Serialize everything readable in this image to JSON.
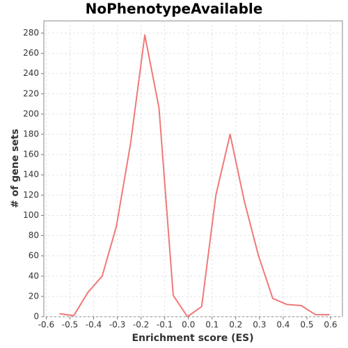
{
  "chart_data": {
    "type": "line",
    "title": "NoPhenotypeAvailable",
    "x_label": "Enrichment score (ES)",
    "y_label": "# of gene sets",
    "x": [
      -0.544,
      -0.484,
      -0.424,
      -0.364,
      -0.304,
      -0.244,
      -0.184,
      -0.124,
      -0.064,
      -0.004,
      0.056,
      0.116,
      0.176,
      0.236,
      0.296,
      0.356,
      0.416,
      0.476,
      0.536,
      0.596
    ],
    "values": [
      3,
      1,
      24,
      40,
      89,
      171,
      278,
      206,
      21,
      0,
      10,
      120,
      180,
      114,
      60,
      18,
      12,
      11,
      2,
      2
    ],
    "color": "#f07878",
    "xlim": [
      -0.61,
      0.65
    ],
    "ylim": [
      0,
      292
    ],
    "xticks": [
      -0.6,
      -0.5,
      -0.4,
      -0.3,
      -0.2,
      -0.1,
      {
        "value": 0,
        "label": "0.0"
      },
      0.1,
      0.2,
      0.3,
      0.4,
      0.5,
      0.6
    ],
    "yticks": [
      0,
      20,
      40,
      60,
      80,
      100,
      120,
      140,
      160,
      180,
      200,
      220,
      240,
      260,
      280
    ],
    "grid": true
  }
}
